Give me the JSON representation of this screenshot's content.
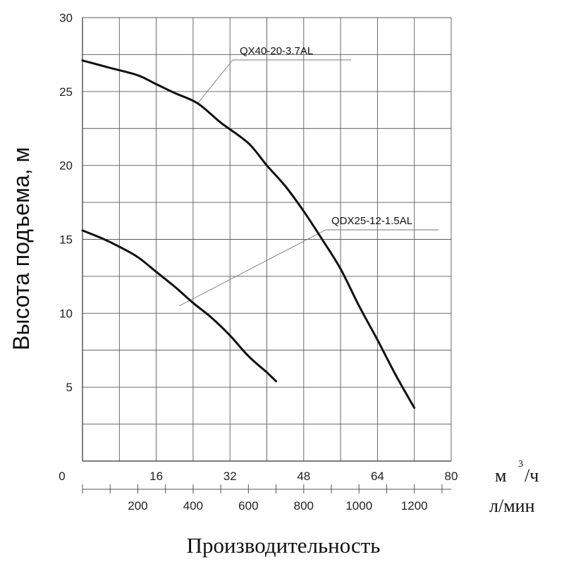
{
  "chart_data": {
    "type": "line",
    "ylabel": "Высота подъема, м",
    "xlabel": "Производительность",
    "ylim": [
      0,
      30
    ],
    "yticks": [
      5,
      10,
      15,
      20,
      25,
      30
    ],
    "ytick_labels": [
      "5",
      "10",
      "15",
      "20",
      "25",
      "30"
    ],
    "y_gridlines": [
      2.5,
      5,
      7.5,
      10,
      12.5,
      15,
      17.5,
      20,
      22.5,
      25,
      27.5,
      30
    ],
    "xlim": [
      0,
      80
    ],
    "xticks_m3h": [
      0,
      16,
      32,
      48,
      64,
      80
    ],
    "xtick_labels_m3h": [
      "0",
      "16",
      "32",
      "48",
      "64",
      "80"
    ],
    "x_gridlines_m3h": [
      8,
      16,
      24,
      32,
      40,
      48,
      56,
      64,
      72,
      80
    ],
    "x_unit_m3h": {
      "base": "м",
      "sup": "3",
      "rest": "/ч"
    },
    "xticks_lpm": [
      200,
      400,
      600,
      800,
      1000,
      1200
    ],
    "xtick_labels_lpm": [
      "200",
      "400",
      "600",
      "800",
      "1000",
      "1200"
    ],
    "x_unit_lpm": "л/мин",
    "grid": true,
    "series": [
      {
        "name": "QX40-20-3.7AL",
        "x": [
          0,
          6,
          12,
          16,
          20,
          25,
          30,
          36,
          40,
          44,
          48,
          52,
          56,
          60,
          64,
          68,
          72
        ],
        "y": [
          27.1,
          26.6,
          26.1,
          25.5,
          24.9,
          24.2,
          22.9,
          21.5,
          20.0,
          18.6,
          16.9,
          15.0,
          13.0,
          10.5,
          8.2,
          5.8,
          3.6
        ]
      },
      {
        "name": "QDX25-12-1.5AL",
        "x": [
          0,
          4,
          8,
          12,
          16,
          20,
          24,
          28,
          32,
          36,
          40,
          42
        ],
        "y": [
          15.6,
          15.1,
          14.5,
          13.8,
          12.8,
          11.8,
          10.7,
          9.7,
          8.5,
          7.1,
          6.0,
          5.4
        ]
      }
    ]
  }
}
